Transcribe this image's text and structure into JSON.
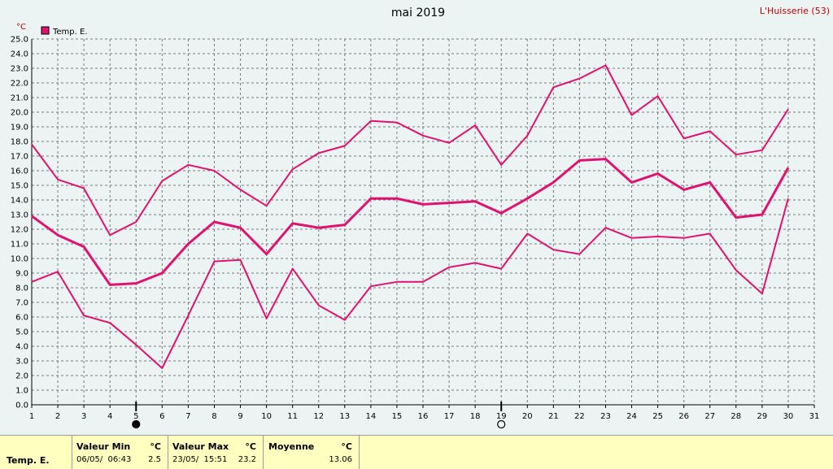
{
  "header": {
    "title": "mai 2019",
    "location": "L'Huisserie (53)",
    "unit": "°C",
    "legend": "Temp. E."
  },
  "colors": {
    "series": "#e0116f",
    "grid": "#7a7a7a",
    "background": "#ebf3f3",
    "stats_background": "#ffffc0"
  },
  "moon_phases": [
    {
      "day": 5,
      "phase": "new-moon"
    },
    {
      "day": 19,
      "phase": "full-moon"
    }
  ],
  "stats": {
    "label": "Temp. E.",
    "min": {
      "header": "Valeur Min",
      "unit": "°C",
      "when": "06/05/  06:43",
      "value": "2.5"
    },
    "max": {
      "header": "Valeur Max",
      "unit": "°C",
      "when": "23/05/  15:51",
      "value": "23.2"
    },
    "avg": {
      "header": "Moyenne",
      "unit": "°C",
      "value": "13.06"
    }
  },
  "chart_data": {
    "type": "line",
    "title": "mai 2019",
    "ylabel": "°C",
    "ylim": [
      0,
      25
    ],
    "xlim": [
      1,
      31
    ],
    "y_tick_step": 1,
    "grid": true,
    "legend_position": "top-left",
    "x": [
      1,
      2,
      3,
      4,
      5,
      6,
      7,
      8,
      9,
      10,
      11,
      12,
      13,
      14,
      15,
      16,
      17,
      18,
      19,
      20,
      21,
      22,
      23,
      24,
      25,
      26,
      27,
      28,
      29,
      30
    ],
    "series": [
      {
        "name": "Temp. E.",
        "role": "max",
        "values": [
          17.8,
          15.4,
          14.8,
          11.6,
          12.5,
          15.3,
          16.4,
          16.0,
          14.7,
          13.6,
          16.1,
          17.2,
          17.7,
          19.4,
          19.3,
          18.4,
          17.9,
          19.1,
          16.4,
          18.4,
          21.7,
          22.3,
          23.2,
          19.8,
          21.1,
          18.2,
          18.7,
          17.1,
          17.4,
          20.2
        ]
      },
      {
        "name": "Temp. E.",
        "role": "mean",
        "values": [
          12.9,
          11.6,
          10.8,
          8.2,
          8.3,
          9.0,
          11.0,
          12.5,
          12.1,
          10.3,
          12.4,
          12.1,
          12.3,
          14.1,
          14.1,
          13.7,
          13.8,
          13.9,
          13.1,
          14.1,
          15.2,
          16.7,
          16.8,
          15.2,
          15.8,
          14.7,
          15.2,
          12.8,
          13.0,
          16.2
        ]
      },
      {
        "name": "Temp. E.",
        "role": "min",
        "values": [
          8.4,
          9.1,
          6.1,
          5.6,
          4.1,
          2.5,
          6.1,
          9.8,
          9.9,
          5.9,
          9.3,
          6.8,
          5.8,
          8.1,
          8.4,
          8.4,
          9.4,
          9.7,
          9.3,
          11.7,
          10.6,
          10.3,
          12.1,
          11.4,
          11.5,
          11.4,
          11.7,
          9.2,
          7.6,
          14.1
        ]
      }
    ]
  }
}
